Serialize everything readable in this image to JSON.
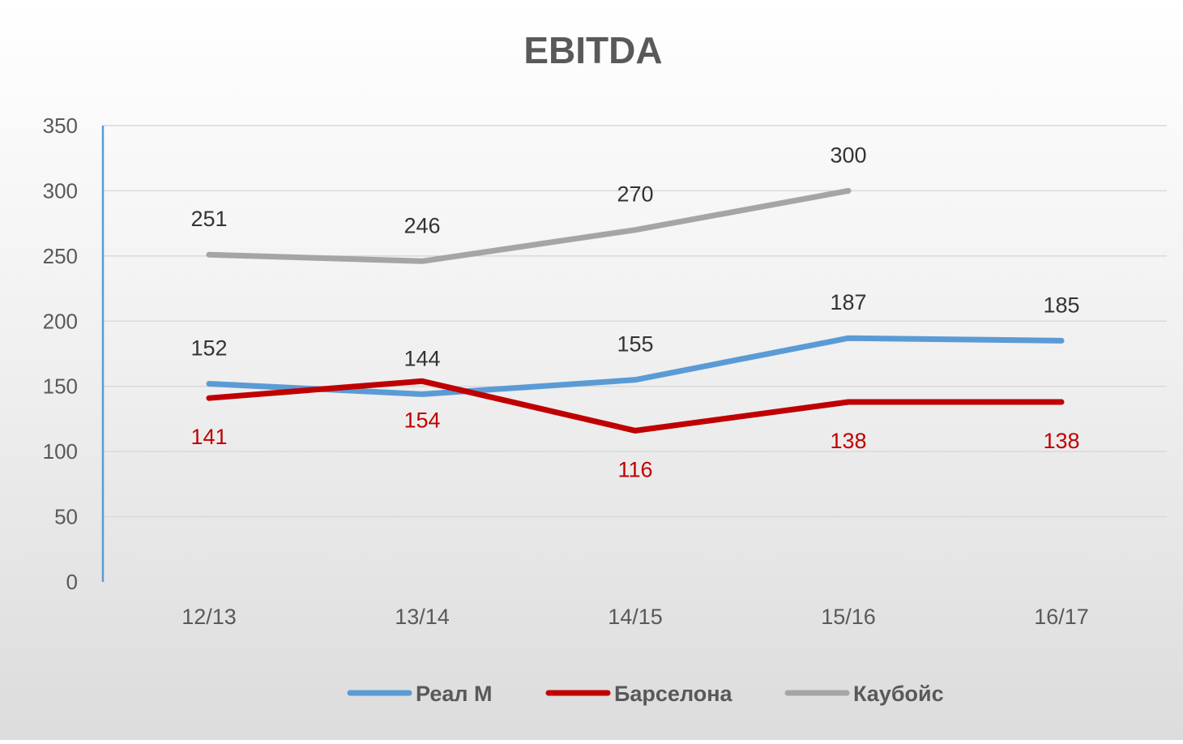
{
  "chart_data": {
    "type": "line",
    "title": "EBITDA",
    "xlabel": "",
    "ylabel": "",
    "categories": [
      "12/13",
      "13/14",
      "14/15",
      "15/16",
      "16/17"
    ],
    "ylim": [
      0,
      350
    ],
    "yticks": [
      0,
      50,
      100,
      150,
      200,
      250,
      300,
      350
    ],
    "grid": true,
    "legend_position": "bottom",
    "series": [
      {
        "name": "Реал М",
        "color": "#5b9bd5",
        "label_color": "#333333",
        "label_side": "above",
        "values": [
          152,
          144,
          155,
          187,
          185
        ]
      },
      {
        "name": "Барселона",
        "color": "#c00000",
        "label_color": "#c00000",
        "label_side": "below",
        "values": [
          141,
          154,
          116,
          138,
          138
        ]
      },
      {
        "name": "Каубойс",
        "color": "#a5a5a5",
        "label_color": "#333333",
        "label_side": "above",
        "values": [
          251,
          246,
          270,
          300,
          null
        ]
      }
    ]
  }
}
